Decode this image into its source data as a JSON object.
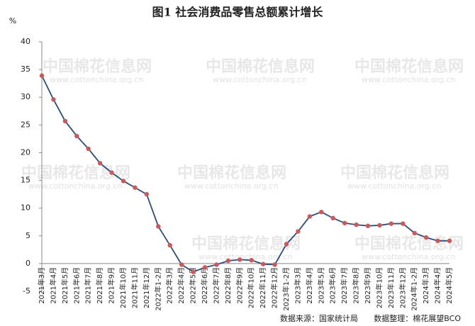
{
  "chart_data": {
    "type": "line",
    "title": "图1  社会消费品零售总额累计增长",
    "y_unit": "%",
    "categories": [
      "2021年3月",
      "2021年4月",
      "2021年5月",
      "2021年6月",
      "2021年7月",
      "2021年8月",
      "2021年9月",
      "2021年10月",
      "2021年11月",
      "2021年12月",
      "2022年1-2月",
      "2022年3月",
      "2022年4月",
      "2022年5月",
      "2022年6月",
      "2022年7月",
      "2022年8月",
      "2022年9月",
      "2022年10月",
      "2022年11月",
      "2022年12月",
      "2023年1-2月",
      "2023年3月",
      "2023年4月",
      "2023年5月",
      "2023年6月",
      "2023年7月",
      "2023年8月",
      "2023年9月",
      "2023年10月",
      "2023年11月",
      "2023年12月",
      "2024年1-2月",
      "2024年3月",
      "2024年4月",
      "2024年5月"
    ],
    "values": [
      33.9,
      29.6,
      25.7,
      23.0,
      20.7,
      18.1,
      16.4,
      14.9,
      13.7,
      12.5,
      6.7,
      3.3,
      -0.2,
      -1.5,
      -0.7,
      -0.2,
      0.5,
      0.7,
      0.6,
      -0.1,
      -0.2,
      3.5,
      5.8,
      8.5,
      9.3,
      8.2,
      7.3,
      7.0,
      6.8,
      6.9,
      7.2,
      7.2,
      5.5,
      4.7,
      4.1,
      4.1
    ],
    "color": "#2f4b7c",
    "marker_color": "#c9595a",
    "ylim": [
      -5,
      40
    ],
    "yticks": [
      -5,
      0,
      5,
      10,
      15,
      20,
      25,
      30,
      35,
      40
    ],
    "grid": false,
    "source": "数据来源：国家统计局",
    "compiled_by": "数据整理：棉花展望BCO"
  },
  "watermark": {
    "name": "中国棉花信息网",
    "url": "www.cottonchina.org.cn"
  }
}
